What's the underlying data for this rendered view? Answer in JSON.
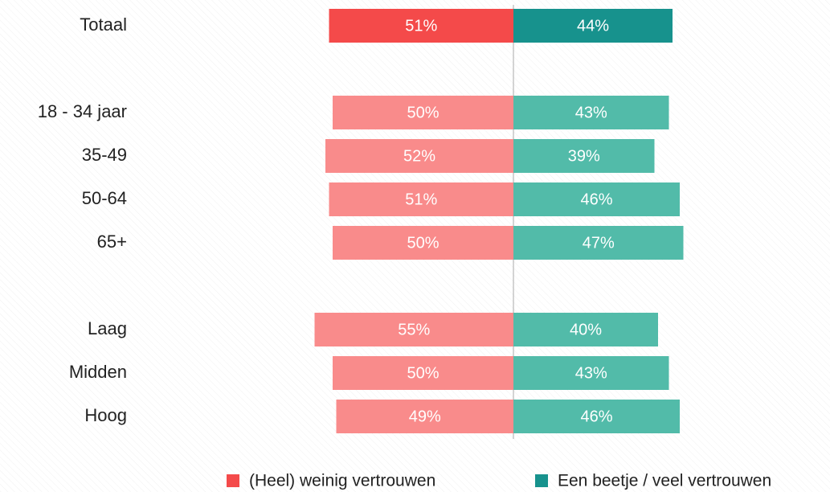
{
  "chart_data": {
    "type": "diverging-bar",
    "categories": [
      "Totaal",
      null,
      "18 - 34 jaar",
      "35-49",
      "50-64",
      "65+",
      null,
      "Laag",
      "Midden",
      "Hoog"
    ],
    "series": [
      {
        "name": "(Heel) weinig vertrouwen",
        "color": "#f44a4a",
        "colors": [
          "#f44a4a",
          null,
          "#f98b8b",
          "#f98b8b",
          "#f98b8b",
          "#f98b8b",
          null,
          "#f98b8b",
          "#f98b8b",
          "#f98b8b"
        ],
        "values": [
          51,
          null,
          50,
          52,
          51,
          50,
          null,
          55,
          50,
          49
        ],
        "value_labels": [
          "51%",
          null,
          "50%",
          "52%",
          "51%",
          "50%",
          null,
          "55%",
          "50%",
          "49%"
        ]
      },
      {
        "name": "Een beetje / veel vertrouwen",
        "color": "#17928d",
        "colors": [
          "#17928d",
          null,
          "#52bba9",
          "#52bba9",
          "#52bba9",
          "#52bba9",
          null,
          "#52bba9",
          "#52bba9",
          "#52bba9"
        ],
        "values": [
          44,
          null,
          43,
          39,
          46,
          47,
          null,
          40,
          43,
          46
        ],
        "value_labels": [
          "44%",
          null,
          "43%",
          "39%",
          "46%",
          "47%",
          null,
          "40%",
          "43%",
          "46%"
        ]
      }
    ]
  }
}
